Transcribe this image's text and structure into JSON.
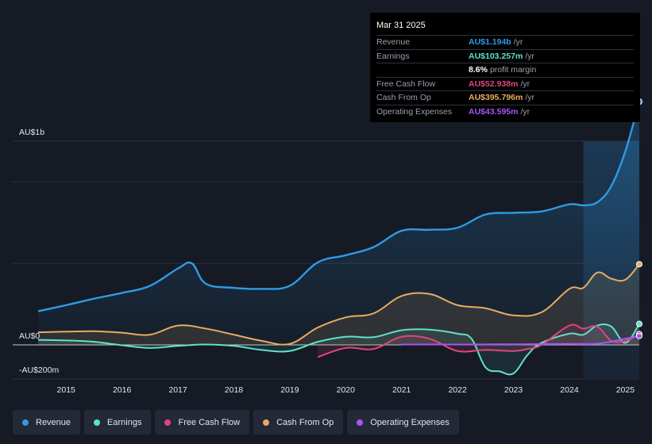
{
  "tooltip": {
    "date": "Mar 31 2025",
    "rows": [
      {
        "label": "Revenue",
        "value": "AU$1.194b",
        "unit": "/yr",
        "color": "#2f9ae6"
      },
      {
        "label": "Earnings",
        "value": "AU$103.257m",
        "unit": "/yr",
        "color": "#5fe0cf"
      },
      {
        "label": "",
        "value": "8.6%",
        "unit": "profit margin",
        "color": "#ffffff"
      },
      {
        "label": "Free Cash Flow",
        "value": "AU$52.938m",
        "unit": "/yr",
        "color": "#e0467d"
      },
      {
        "label": "Cash From Op",
        "value": "AU$395.796m",
        "unit": "/yr",
        "color": "#e9ab61"
      },
      {
        "label": "Operating Expenses",
        "value": "AU$43.595m",
        "unit": "/yr",
        "color": "#a855f7"
      }
    ]
  },
  "legend": [
    {
      "label": "Revenue",
      "color": "#2f9ae6"
    },
    {
      "label": "Earnings",
      "color": "#5fe0cf"
    },
    {
      "label": "Free Cash Flow",
      "color": "#e0467d"
    },
    {
      "label": "Cash From Op",
      "color": "#e9ab61"
    },
    {
      "label": "Operating Expenses",
      "color": "#a855f7"
    }
  ],
  "chart_data": {
    "type": "area",
    "title": "",
    "xlabel": "",
    "ylabel": "",
    "y_tick_labels": [
      "AU$1b",
      "AU$0",
      "-AU$200m"
    ],
    "y_tick_values": [
      1000,
      0,
      -200
    ],
    "ylim": [
      -200,
      1000
    ],
    "xlim": [
      2014.5,
      2025.25
    ],
    "x_tick_labels": [
      "2015",
      "2016",
      "2017",
      "2018",
      "2019",
      "2020",
      "2021",
      "2022",
      "2023",
      "2024",
      "2025"
    ],
    "x_tick_values": [
      2015,
      2016,
      2017,
      2018,
      2019,
      2020,
      2021,
      2022,
      2023,
      2024,
      2025
    ],
    "highlight_from": 2024.25,
    "series": [
      {
        "name": "Revenue",
        "color": "#2f9ae6",
        "fill": true,
        "x": [
          2014.5,
          2015.0,
          2015.5,
          2016.0,
          2016.5,
          2017.0,
          2017.25,
          2017.5,
          2018.0,
          2018.5,
          2019.0,
          2019.5,
          2020.0,
          2020.5,
          2021.0,
          2021.5,
          2022.0,
          2022.5,
          2023.0,
          2023.5,
          2024.0,
          2024.25,
          2024.5,
          2024.75,
          2025.0,
          2025.25
        ],
        "values": [
          165,
          195,
          227,
          255,
          290,
          375,
          400,
          300,
          280,
          275,
          290,
          405,
          440,
          480,
          560,
          565,
          575,
          640,
          648,
          655,
          690,
          685,
          700,
          780,
          950,
          1194
        ]
      },
      {
        "name": "Earnings",
        "color": "#5fe0cf",
        "fill": true,
        "x": [
          2014.5,
          2015.0,
          2015.5,
          2016.0,
          2016.5,
          2017.0,
          2017.5,
          2018.0,
          2018.5,
          2019.0,
          2019.5,
          2020.0,
          2020.5,
          2021.0,
          2021.5,
          2022.0,
          2022.25,
          2022.5,
          2022.75,
          2023.0,
          2023.25,
          2023.5,
          2024.0,
          2024.25,
          2024.5,
          2024.75,
          2025.0,
          2025.25
        ],
        "values": [
          25,
          22,
          15,
          -2,
          -15,
          -5,
          2,
          -5,
          -25,
          -30,
          15,
          40,
          38,
          72,
          75,
          55,
          30,
          -110,
          -130,
          -140,
          -50,
          10,
          55,
          50,
          95,
          90,
          10,
          103
        ]
      },
      {
        "name": "Free Cash Flow",
        "color": "#e0467d",
        "fill": true,
        "x": [
          2019.5,
          2020.0,
          2020.5,
          2021.0,
          2021.5,
          2022.0,
          2022.5,
          2023.0,
          2023.25,
          2023.5,
          2024.0,
          2024.25,
          2024.5,
          2024.75,
          2025.0,
          2025.25
        ],
        "values": [
          -60,
          -15,
          -20,
          40,
          30,
          -30,
          -25,
          -30,
          -20,
          0,
          95,
          80,
          90,
          20,
          20,
          53
        ]
      },
      {
        "name": "Cash From Op",
        "color": "#e9ab61",
        "fill": true,
        "x": [
          2014.5,
          2015.0,
          2015.5,
          2016.0,
          2016.5,
          2017.0,
          2017.5,
          2018.0,
          2018.5,
          2019.0,
          2019.5,
          2020.0,
          2020.5,
          2021.0,
          2021.5,
          2022.0,
          2022.5,
          2023.0,
          2023.5,
          2024.0,
          2024.25,
          2024.5,
          2024.75,
          2025.0,
          2025.25
        ],
        "values": [
          62,
          65,
          67,
          60,
          50,
          95,
          80,
          50,
          20,
          5,
          85,
          135,
          155,
          240,
          250,
          195,
          180,
          145,
          160,
          275,
          280,
          355,
          325,
          320,
          396
        ]
      },
      {
        "name": "Operating Expenses",
        "color": "#a855f7",
        "fill": false,
        "x": [
          2021.0,
          2022.0,
          2023.0,
          2024.0,
          2024.5,
          2025.0,
          2025.25
        ],
        "values": [
          2,
          2,
          3,
          5,
          6,
          30,
          44
        ]
      }
    ]
  }
}
